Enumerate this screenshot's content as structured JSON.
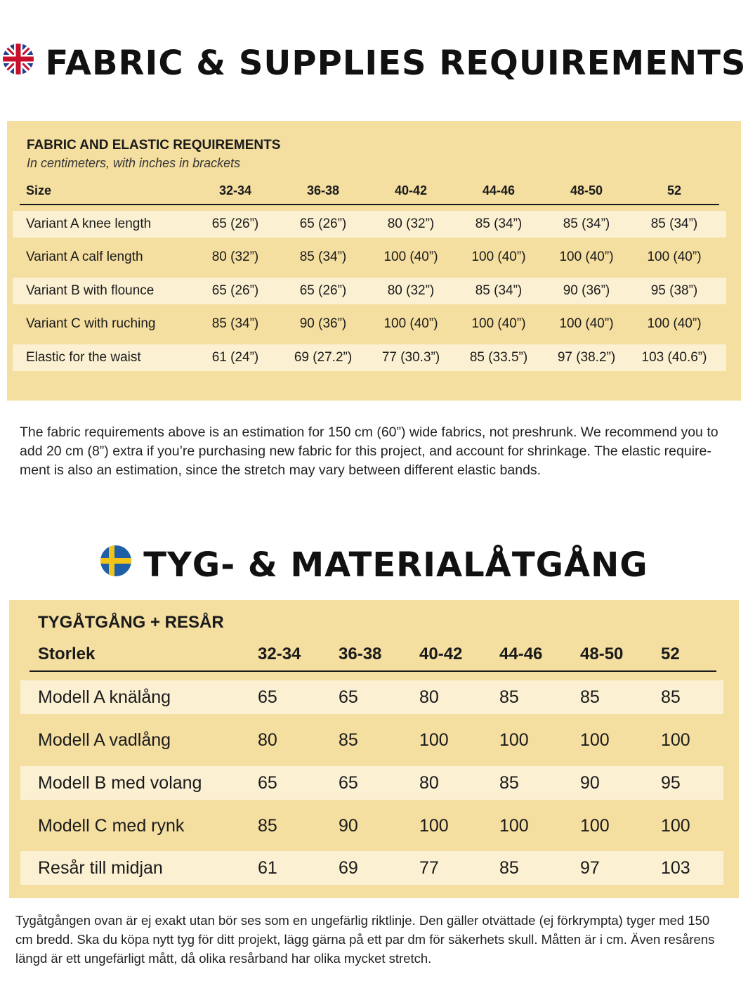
{
  "english": {
    "heading": "FABRIC & SUPPLIES REQUIREMENTS",
    "flag_icon": "uk-flag-icon",
    "table_title": "FABRIC AND ELASTIC REQUIREMENTS",
    "table_subtitle": "In centimeters, with inches in brackets",
    "size_label": "Size",
    "sizes": [
      "32-34",
      "36-38",
      "40-42",
      "44-46",
      "48-50",
      "52"
    ],
    "rows": [
      {
        "label": "Variant A knee length",
        "values": [
          "65 (26”)",
          "65 (26”)",
          "80 (32”)",
          "85 (34”)",
          "85 (34”)",
          "85 (34”)"
        ]
      },
      {
        "label": "Variant A calf length",
        "values": [
          "80 (32”)",
          "85 (34”)",
          "100 (40”)",
          "100 (40”)",
          "100 (40”)",
          "100 (40”)"
        ]
      },
      {
        "label": "Variant B with flounce",
        "values": [
          "65 (26”)",
          "65 (26”)",
          "80 (32”)",
          "85 (34”)",
          "90 (36”)",
          "95 (38”)"
        ]
      },
      {
        "label": "Variant C with ruching",
        "values": [
          "85 (34”)",
          "90 (36”)",
          "100 (40”)",
          "100 (40”)",
          "100 (40”)",
          "100 (40”)"
        ]
      },
      {
        "label": "Elastic for the waist",
        "values": [
          "61 (24”)",
          "69 (27.2”)",
          "77 (30.3”)",
          "85 (33.5”)",
          "97 (38.2”)",
          "103 (40.6”)"
        ]
      }
    ],
    "note_lines": [
      "The fabric requirements above is an estimation for 150 cm (60”) wide fabrics, not preshrunk. We recommend you to",
      "add 20 cm (8”) extra if you’re purchasing new fabric for this project, and account for shrinkage. The elastic require-",
      "ment is also an estimation, since the stretch may vary between different elastic bands."
    ]
  },
  "swedish": {
    "heading": "TYG- & MATERIALÅTGÅNG",
    "flag_icon": "sweden-flag-icon",
    "table_title": "TYGÅTGÅNG + RESÅR",
    "size_label": "Storlek",
    "sizes": [
      "32-34",
      "36-38",
      "40-42",
      "44-46",
      "48-50",
      "52"
    ],
    "rows": [
      {
        "label": "Modell A knälång",
        "values": [
          "65",
          "65",
          "80",
          "85",
          "85",
          "85"
        ]
      },
      {
        "label": "Modell A vadlång",
        "values": [
          "80",
          "85",
          "100",
          "100",
          "100",
          "100"
        ]
      },
      {
        "label": "Modell B med volang",
        "values": [
          "65",
          "65",
          "80",
          "85",
          "90",
          "95"
        ]
      },
      {
        "label": "Modell C med rynk",
        "values": [
          "85",
          "90",
          "100",
          "100",
          "100",
          "100"
        ]
      },
      {
        "label": "Resår till midjan",
        "values": [
          "61",
          "69",
          "77",
          "85",
          "97",
          "103"
        ]
      }
    ],
    "note_lines": [
      "Tygåtgången ovan är ej exakt utan bör ses som en ungefärlig riktlinje. Den gäller otvättade (ej förkrympta) tyger med 150",
      "cm bredd. Ska du köpa nytt tyg för ditt projekt, lägg gärna på ett par dm för säkerhets skull. Måtten är i cm. Även resårens",
      "längd är ett ungefärligt mått, då olika resårband har olika mycket stretch."
    ]
  },
  "colors": {
    "panel": "#f4dea0",
    "band": "#fbf0d2",
    "text": "#1a1a1a"
  }
}
